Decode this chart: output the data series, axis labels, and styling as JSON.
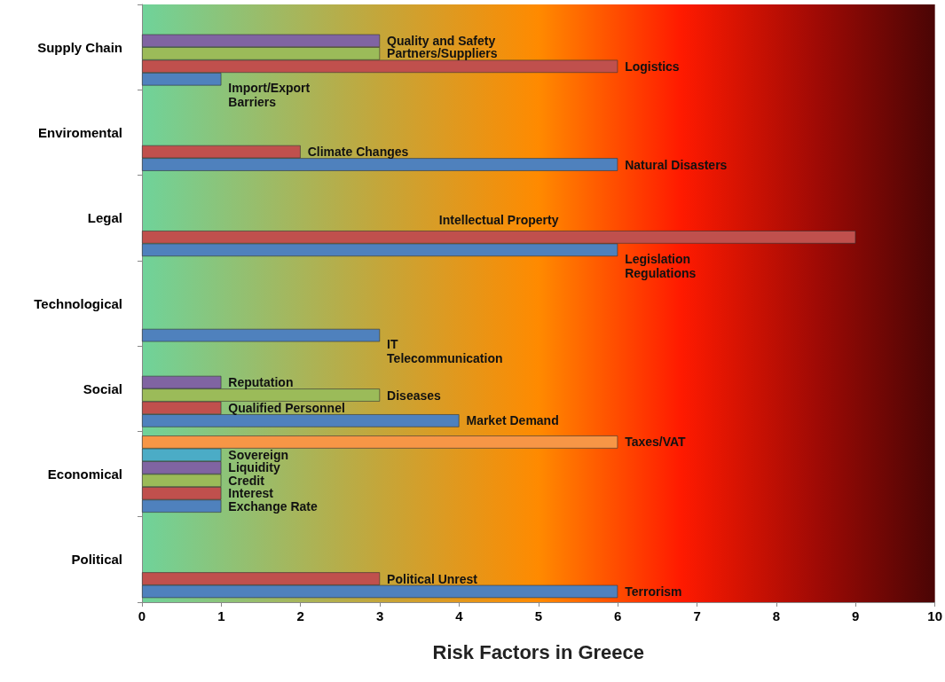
{
  "chart_data": {
    "type": "bar",
    "orientation": "horizontal",
    "xlabel": "Risk Factors in Greece",
    "categories": [
      "Supply Chain",
      "Enviromental",
      "Legal",
      "Technological",
      "Social",
      "Economical",
      "Political"
    ],
    "series": [
      {
        "color": "#f79646",
        "values": [
          null,
          null,
          null,
          null,
          null,
          6,
          null
        ],
        "value_labels": [
          null,
          null,
          null,
          null,
          null,
          "Taxes/VAT",
          null
        ]
      },
      {
        "color": "#4bacc6",
        "values": [
          null,
          null,
          null,
          null,
          null,
          1,
          null
        ],
        "value_labels": [
          null,
          null,
          null,
          null,
          null,
          "Sovereign",
          null
        ]
      },
      {
        "color": "#8064a2",
        "values": [
          3,
          null,
          null,
          null,
          1,
          1,
          null
        ],
        "value_labels": [
          "Quality and Safety",
          null,
          null,
          null,
          "Reputation",
          "Liquidity",
          null
        ]
      },
      {
        "color": "#9bbb59",
        "values": [
          3,
          null,
          null,
          null,
          3,
          1,
          null
        ],
        "value_labels": [
          "Partners/Suppliers",
          null,
          null,
          null,
          "Diseases",
          "Credit",
          null
        ]
      },
      {
        "color": "#c0504d",
        "values": [
          6,
          2,
          9,
          null,
          1,
          1,
          3
        ],
        "value_labels": [
          "Logistics",
          "Climate Changes",
          "Intellectual Property",
          null,
          "Qualified Personnel",
          "Interest",
          "Political Unrest"
        ]
      },
      {
        "color": "#4f81bd",
        "values": [
          1,
          6,
          6,
          3,
          4,
          1,
          6
        ],
        "value_labels": [
          "Import/Export\nBarriers",
          "Natural Disasters",
          "Legislation\nRegulations",
          "IT\nTelecommunication",
          "Market Demand",
          "Exchange Rate",
          "Terrorism"
        ]
      }
    ],
    "xlim": [
      0,
      10
    ],
    "xticks": [
      0,
      1,
      2,
      3,
      4,
      5,
      6,
      7,
      8,
      9,
      10
    ],
    "grid": false
  }
}
